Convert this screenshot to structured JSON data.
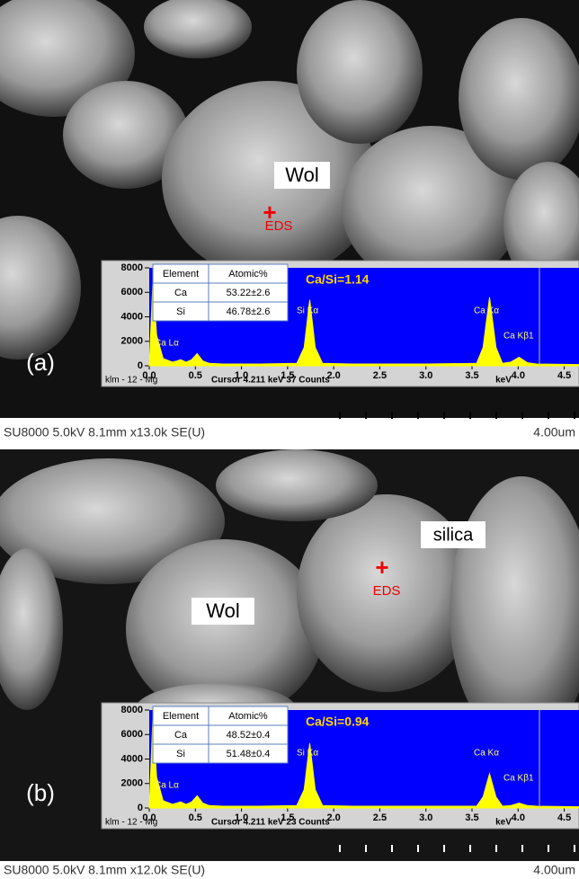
{
  "panels": [
    {
      "label": "(a)",
      "annotations": [
        "Wol",
        "EDS"
      ],
      "info": "SU8000 5.0kV 8.1mm x13.0k SE(U)",
      "scale": "4.00um",
      "eds": {
        "table": {
          "header": [
            "Element",
            "Atomic%"
          ],
          "rows": [
            [
              "Ca",
              "53.22±2.6"
            ],
            [
              "Si",
              "46.78±2.6"
            ]
          ]
        },
        "ratio": "Ca/Si=1.14",
        "peaks": [
          "Ca Lα",
          "Si Kα",
          "Ca Kα",
          "Ca Kβ1"
        ],
        "footer": [
          "klm - 12 - Mg",
          "Cursor 4.211 keV  37 Counts"
        ]
      }
    },
    {
      "label": "(b)",
      "annotations": [
        "silica",
        "Wol",
        "EDS"
      ],
      "info": "SU8000 5.0kV 8.1mm x12.0k SE(U)",
      "scale": "4.00um",
      "eds": {
        "table": {
          "header": [
            "Element",
            "Atomic%"
          ],
          "rows": [
            [
              "Ca",
              "48.52±0.4"
            ],
            [
              "Si",
              "51.48±0.4"
            ]
          ]
        },
        "ratio": "Ca/Si=0.94",
        "peaks": [
          "Ca Lα",
          "Si Kα",
          "Ca Kα",
          "Ca Kβ1"
        ],
        "footer": [
          "klm - 12 - Mg",
          "Cursor 4.211 keV  23 Counts"
        ]
      }
    }
  ],
  "chart_data": [
    {
      "type": "area",
      "x_label": "keV",
      "color": "#ffff00",
      "background": "#0000ff",
      "x": [
        0,
        0.04,
        0.08,
        0.15,
        0.25,
        0.3,
        0.34,
        0.4,
        0.46,
        0.52,
        0.58,
        0.65,
        0.8,
        1.2,
        1.6,
        1.68,
        1.74,
        1.8,
        1.88,
        2.2,
        3.0,
        3.55,
        3.62,
        3.69,
        3.76,
        3.83,
        3.92,
        4.01,
        4.1,
        4.2,
        4.66
      ],
      "values": [
        0,
        7000,
        2500,
        600,
        300,
        400,
        500,
        300,
        500,
        1000,
        400,
        200,
        150,
        150,
        200,
        1500,
        5400,
        1500,
        200,
        150,
        150,
        200,
        1500,
        5600,
        1500,
        200,
        300,
        700,
        250,
        150,
        100
      ],
      "xlim": [
        0,
        4.66
      ],
      "ylim": [
        0,
        8000
      ],
      "xticks": [
        {
          "value": 0,
          "label": "0.0"
        },
        0.5,
        {
          "value": 1,
          "label": "1.0"
        },
        1.5,
        {
          "value": 2,
          "label": "2.0"
        },
        2.5,
        {
          "value": 3,
          "label": "3.0"
        },
        3.5,
        {
          "value": 4,
          "label": "4.0"
        },
        4.5
      ],
      "yticks": [
        0,
        2000,
        4000,
        6000,
        8000
      ]
    },
    {
      "type": "area",
      "x_label": "keV",
      "color": "#ffff00",
      "background": "#0000ff",
      "x": [
        0,
        0.04,
        0.08,
        0.15,
        0.25,
        0.3,
        0.34,
        0.4,
        0.46,
        0.52,
        0.58,
        0.65,
        0.8,
        1.2,
        1.6,
        1.68,
        1.74,
        1.8,
        1.88,
        2.2,
        3.0,
        3.55,
        3.62,
        3.69,
        3.76,
        3.83,
        3.92,
        4.01,
        4.1,
        4.2,
        4.66
      ],
      "values": [
        0,
        7500,
        2500,
        600,
        300,
        400,
        500,
        300,
        500,
        1000,
        400,
        200,
        150,
        150,
        200,
        1500,
        5300,
        1500,
        200,
        150,
        150,
        150,
        900,
        2800,
        900,
        150,
        200,
        400,
        200,
        150,
        100
      ],
      "xlim": [
        0,
        4.66
      ],
      "ylim": [
        0,
        8000
      ],
      "xticks": [
        {
          "value": 0,
          "label": "0.0"
        },
        0.5,
        {
          "value": 1,
          "label": "1.0"
        },
        1.5,
        {
          "value": 2,
          "label": "2.0"
        },
        2.5,
        {
          "value": 3,
          "label": "3.0"
        },
        3.5,
        {
          "value": 4,
          "label": "4.0"
        },
        4.5
      ],
      "yticks": [
        0,
        2000,
        4000,
        6000,
        8000
      ]
    }
  ]
}
